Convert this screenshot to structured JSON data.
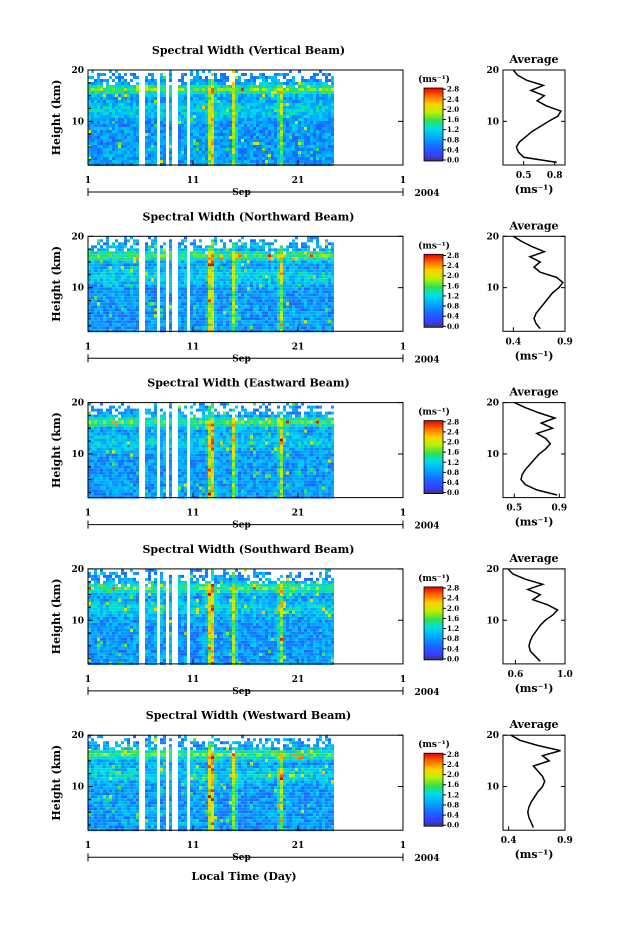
{
  "chart_data": [
    {
      "type": "heatmap",
      "title": "Spectral Width (Vertical Beam)",
      "ylabel": "Height (km)",
      "xlabel": "Sep",
      "year_label": "2004",
      "x_ticks": [
        "1",
        "11",
        "21",
        "1"
      ],
      "y_ticks": [
        "20",
        "10"
      ],
      "xlim": [
        1,
        31
      ],
      "ylim": [
        1.5,
        20
      ],
      "colorbar": {
        "unit": "(ms⁻¹)",
        "ticks": [
          "2.8",
          "2.4",
          "2.0",
          "1.6",
          "1.2",
          "0.8",
          "0.4",
          "0.0"
        ],
        "range": [
          0.0,
          2.8
        ]
      },
      "data_gaps_day": [
        [
          5.6,
          6.2
        ],
        [
          7.3,
          7.6
        ],
        [
          8.3,
          8.5
        ],
        [
          9.0,
          9.3
        ],
        [
          10.4,
          10.6
        ],
        [
          24.3,
          31.0
        ]
      ],
      "hotspots_day": [
        12.6,
        14.8,
        19.2
      ],
      "average": {
        "title": "Average",
        "xlabel": "(ms⁻¹)",
        "x_ticks": [
          "0.5",
          "0.8"
        ],
        "xlim": [
          0.3,
          0.9
        ],
        "y_ticks": [
          "20",
          "10"
        ],
        "height_km": [
          2,
          3,
          4,
          5,
          6,
          7,
          8,
          9,
          10,
          11,
          12,
          13,
          14,
          15,
          16,
          17,
          18,
          19,
          20
        ],
        "value": [
          0.82,
          0.5,
          0.45,
          0.43,
          0.46,
          0.52,
          0.58,
          0.66,
          0.74,
          0.83,
          0.86,
          0.72,
          0.63,
          0.7,
          0.57,
          0.69,
          0.53,
          0.44,
          0.4
        ]
      }
    },
    {
      "type": "heatmap",
      "title": "Spectral Width (Northward Beam)",
      "ylabel": "Height (km)",
      "xlabel": "Sep",
      "year_label": "2004",
      "x_ticks": [
        "1",
        "11",
        "21",
        "1"
      ],
      "y_ticks": [
        "20",
        "10"
      ],
      "xlim": [
        1,
        31
      ],
      "ylim": [
        1.5,
        20
      ],
      "colorbar": {
        "unit": "(ms⁻¹)",
        "ticks": [
          "2.8",
          "2.4",
          "2.0",
          "1.6",
          "1.2",
          "0.8",
          "0.4",
          "0.0"
        ],
        "range": [
          0.0,
          2.8
        ]
      },
      "data_gaps_day": [
        [
          5.6,
          6.2
        ],
        [
          7.3,
          7.6
        ],
        [
          8.3,
          8.5
        ],
        [
          9.0,
          9.3
        ],
        [
          10.4,
          10.6
        ],
        [
          24.3,
          31.0
        ]
      ],
      "hotspots_day": [
        12.6,
        14.8,
        19.2
      ],
      "average": {
        "title": "Average",
        "xlabel": "(ms⁻¹)",
        "x_ticks": [
          "0.4",
          "0.9"
        ],
        "xlim": [
          0.3,
          0.9
        ],
        "y_ticks": [
          "20",
          "10"
        ],
        "height_km": [
          2,
          3,
          4,
          5,
          6,
          7,
          8,
          9,
          10,
          11,
          12,
          13,
          14,
          15,
          16,
          17,
          18,
          19,
          20
        ],
        "value": [
          0.66,
          0.62,
          0.6,
          0.62,
          0.66,
          0.7,
          0.74,
          0.78,
          0.84,
          0.88,
          0.82,
          0.66,
          0.6,
          0.66,
          0.56,
          0.7,
          0.58,
          0.48,
          0.4
        ]
      }
    },
    {
      "type": "heatmap",
      "title": "Spectral Width (Eastward Beam)",
      "ylabel": "Height (km)",
      "xlabel": "Sep",
      "year_label": "2004",
      "x_ticks": [
        "1",
        "11",
        "21",
        "1"
      ],
      "y_ticks": [
        "20",
        "10"
      ],
      "xlim": [
        1,
        31
      ],
      "ylim": [
        1.5,
        20
      ],
      "colorbar": {
        "unit": "(ms⁻¹)",
        "ticks": [
          "2.8",
          "2.4",
          "2.0",
          "1.6",
          "1.2",
          "0.8",
          "0.4",
          "0.0"
        ],
        "range": [
          0.0,
          2.8
        ]
      },
      "data_gaps_day": [
        [
          5.6,
          6.2
        ],
        [
          7.3,
          7.6
        ],
        [
          8.3,
          8.5
        ],
        [
          9.0,
          9.3
        ],
        [
          10.4,
          10.6
        ],
        [
          24.3,
          31.0
        ]
      ],
      "hotspots_day": [
        12.6,
        14.8,
        19.2
      ],
      "average": {
        "title": "Average",
        "xlabel": "(ms⁻¹)",
        "x_ticks": [
          "0.5",
          "0.9"
        ],
        "xlim": [
          0.4,
          0.95
        ],
        "y_ticks": [
          "20",
          "10"
        ],
        "height_km": [
          2,
          3,
          4,
          5,
          6,
          7,
          8,
          9,
          10,
          11,
          12,
          13,
          14,
          15,
          16,
          17,
          18,
          19,
          20
        ],
        "value": [
          0.88,
          0.7,
          0.6,
          0.56,
          0.57,
          0.6,
          0.64,
          0.68,
          0.72,
          0.78,
          0.82,
          0.78,
          0.7,
          0.84,
          0.74,
          0.86,
          0.72,
          0.6,
          0.5
        ]
      }
    },
    {
      "type": "heatmap",
      "title": "Spectral Width (Southward Beam)",
      "ylabel": "Height (km)",
      "xlabel": "Sep",
      "year_label": "2004",
      "x_ticks": [
        "1",
        "11",
        "21",
        "1"
      ],
      "y_ticks": [
        "20",
        "10"
      ],
      "xlim": [
        1,
        31
      ],
      "ylim": [
        1.5,
        20
      ],
      "colorbar": {
        "unit": "(ms⁻¹)",
        "ticks": [
          "2.8",
          "2.4",
          "2.0",
          "1.6",
          "1.2",
          "0.8",
          "0.4",
          "0.0"
        ],
        "range": [
          0.0,
          2.8
        ]
      },
      "data_gaps_day": [
        [
          5.6,
          6.2
        ],
        [
          7.3,
          7.6
        ],
        [
          8.3,
          8.5
        ],
        [
          9.0,
          9.3
        ],
        [
          10.4,
          10.6
        ],
        [
          24.3,
          31.0
        ]
      ],
      "hotspots_day": [
        12.6,
        14.8,
        19.2
      ],
      "average": {
        "title": "Average",
        "xlabel": "(ms⁻¹)",
        "x_ticks": [
          "0.6",
          "1.0"
        ],
        "xlim": [
          0.5,
          1.0
        ],
        "y_ticks": [
          "20",
          "10"
        ],
        "height_km": [
          2,
          3,
          4,
          5,
          6,
          7,
          8,
          9,
          10,
          11,
          12,
          13,
          14,
          15,
          16,
          17,
          18,
          19,
          20
        ],
        "value": [
          0.8,
          0.76,
          0.72,
          0.71,
          0.72,
          0.74,
          0.77,
          0.8,
          0.84,
          0.9,
          0.94,
          0.86,
          0.74,
          0.8,
          0.7,
          0.82,
          0.68,
          0.58,
          0.54
        ]
      }
    },
    {
      "type": "heatmap",
      "title": "Spectral Width (Westward Beam)",
      "ylabel": "Height (km)",
      "xlabel": "Sep",
      "year_label": "2004",
      "x_ticks": [
        "1",
        "11",
        "21",
        "1"
      ],
      "y_ticks": [
        "20",
        "10"
      ],
      "xlim": [
        1,
        31
      ],
      "ylim": [
        1.5,
        20
      ],
      "colorbar": {
        "unit": "(ms⁻¹)",
        "ticks": [
          "2.8",
          "2.4",
          "2.0",
          "1.6",
          "1.2",
          "0.8",
          "0.4",
          "0.0"
        ],
        "range": [
          0.0,
          2.8
        ]
      },
      "data_gaps_day": [
        [
          5.6,
          6.2
        ],
        [
          7.3,
          7.6
        ],
        [
          8.3,
          8.5
        ],
        [
          9.0,
          9.3
        ],
        [
          10.4,
          10.6
        ],
        [
          24.3,
          31.0
        ]
      ],
      "hotspots_day": [
        12.6,
        14.8,
        19.2
      ],
      "average": {
        "title": "Average",
        "xlabel": "(ms⁻¹)",
        "x_ticks": [
          "0.4",
          "0.9"
        ],
        "xlim": [
          0.35,
          0.9
        ],
        "y_ticks": [
          "20",
          "10"
        ],
        "height_km": [
          2,
          3,
          4,
          5,
          6,
          7,
          8,
          9,
          10,
          11,
          12,
          13,
          14,
          15,
          16,
          17,
          18,
          19,
          20
        ],
        "value": [
          0.62,
          0.6,
          0.58,
          0.57,
          0.58,
          0.6,
          0.63,
          0.66,
          0.7,
          0.72,
          0.7,
          0.66,
          0.62,
          0.76,
          0.7,
          0.86,
          0.66,
          0.5,
          0.42
        ]
      }
    }
  ],
  "figure": {
    "xlabel_bottom": "Local Time (Day)"
  }
}
